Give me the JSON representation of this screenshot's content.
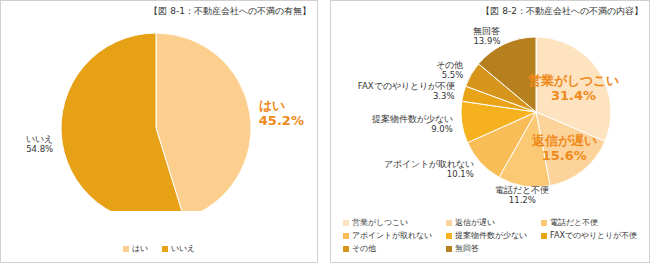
{
  "chart_data": [
    {
      "type": "pie",
      "title": "【図 8-1：不動産会社への不満の有無】",
      "categories": [
        "はい",
        "いいえ"
      ],
      "values": [
        45.2,
        54.8
      ],
      "value_labels": [
        "45.2%",
        "54.8%"
      ],
      "colors": [
        "#fdcf8e",
        "#e6a117"
      ],
      "data_labels": true,
      "legend": "bottom"
    },
    {
      "type": "pie",
      "title": "【図 8-2：不動産会社への不満の内容】",
      "categories": [
        "営業がしつこい",
        "返信が遅い",
        "電話だと不便",
        "アポイントが取れない",
        "提案物件数が少ない",
        "FAXでのやりとりが不便",
        "その他",
        "無回答"
      ],
      "values": [
        31.4,
        15.6,
        11.2,
        10.1,
        9.0,
        3.3,
        5.5,
        13.9
      ],
      "value_labels": [
        "31.4%",
        "15.6%",
        "11.2%",
        "10.1%",
        "9.0%",
        "3.3%",
        "5.5%",
        "13.9%"
      ],
      "colors": [
        "#fde3c0",
        "#fcd49b",
        "#fbc874",
        "#f9bd57",
        "#f5b21e",
        "#e8a317",
        "#d7951b",
        "#b6801f"
      ],
      "data_labels": true,
      "legend": "bottom"
    }
  ]
}
